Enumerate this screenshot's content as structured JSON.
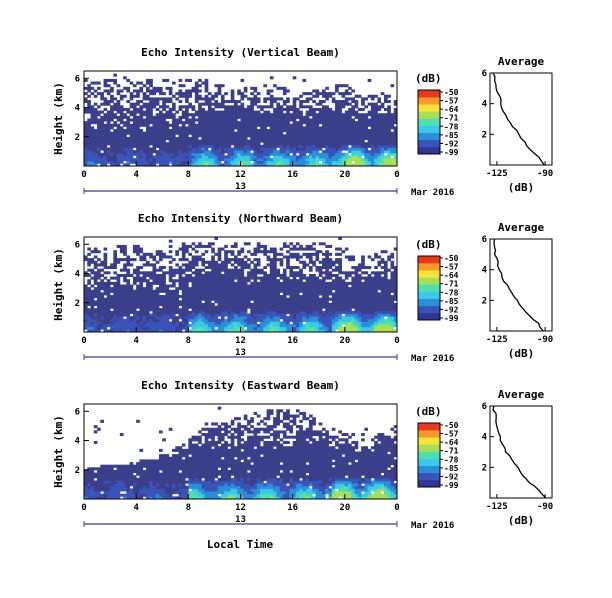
{
  "figure": {
    "xlabel": "Local Time",
    "date_label": "Mar 2016",
    "day_label": "13",
    "colorbar_title": "(dB)",
    "colorbar_ticks": [
      "-50",
      "-57",
      "-64",
      "-71",
      "-78",
      "-85",
      "-92",
      "-99"
    ],
    "colormap": [
      "#313695",
      "#3a53b8",
      "#2b8fd8",
      "#3cc8e8",
      "#4fe0b0",
      "#a6e05a",
      "#f7e33a",
      "#f79a2a",
      "#e8391e"
    ],
    "background_color": "#3b3f8a"
  },
  "chart_data": [
    {
      "type": "heatmap",
      "title": "Echo Intensity (Vertical Beam)",
      "ylabel": "Height (km)",
      "x_ticks": [
        "0",
        "4",
        "8",
        "12",
        "16",
        "20",
        "0"
      ],
      "y_ticks": [
        "6",
        "4",
        "2"
      ],
      "x_range": [
        0,
        24
      ],
      "y_range": [
        0,
        6.5
      ],
      "value_range_db": [
        -99,
        -50
      ],
      "top_height_km": [
        6,
        6,
        6,
        6,
        6,
        6,
        6,
        6,
        6,
        5.8,
        5.6,
        5.4,
        5.5,
        5.5,
        5.6,
        5.4,
        5.0,
        5.2,
        5.4,
        5.6,
        5.3,
        4.9,
        5.0,
        5.1
      ],
      "lowest_gap_km": [
        2.6,
        2.6,
        2.6,
        2.6,
        2.6,
        2.6,
        2.6,
        2.6,
        2.6,
        3.6,
        3.8,
        3.8,
        3.6,
        3.5,
        3.6,
        3.6,
        3.4,
        3.6,
        3.8,
        3.6,
        3.4,
        3.2,
        3.4,
        3.6
      ],
      "average": {
        "title": "Average",
        "xlabel": "(dB)",
        "x_ticks": [
          "-125",
          "-90"
        ],
        "y_ticks": [
          "6",
          "4",
          "2"
        ],
        "x_range": [
          -130,
          -85
        ],
        "y_range": [
          0,
          6
        ],
        "profile_db": [
          -90,
          -92,
          -95,
          -98,
          -101,
          -103,
          -105,
          -107,
          -109,
          -111,
          -113,
          -115,
          -117,
          -119,
          -120,
          -121,
          -122,
          -122,
          -123,
          -124,
          -125,
          -126,
          -127,
          -127,
          -127
        ],
        "profile_height_km": [
          0.0,
          0.25,
          0.5,
          0.75,
          1.0,
          1.25,
          1.5,
          1.75,
          2.0,
          2.25,
          2.5,
          2.75,
          3.0,
          3.25,
          3.5,
          3.75,
          4.0,
          4.25,
          4.5,
          4.75,
          5.0,
          5.25,
          5.5,
          5.75,
          6.0
        ]
      }
    },
    {
      "type": "heatmap",
      "title": "Echo Intensity (Northward Beam)",
      "ylabel": "Height (km)",
      "x_ticks": [
        "0",
        "4",
        "8",
        "12",
        "16",
        "20",
        "0"
      ],
      "y_ticks": [
        "6",
        "4",
        "2"
      ],
      "x_range": [
        0,
        24
      ],
      "y_range": [
        0,
        6.5
      ],
      "value_range_db": [
        -99,
        -50
      ],
      "top_height_km": [
        6,
        6,
        6,
        6,
        6,
        6,
        6,
        6,
        6.2,
        6.2,
        6.2,
        6.2,
        6.2,
        6.2,
        6.2,
        6.2,
        6.2,
        6.2,
        6.0,
        5.8,
        5.5,
        5.2,
        5.6,
        5.8
      ],
      "lowest_gap_km": [
        2.2,
        2.4,
        2.2,
        2.6,
        2.5,
        2.5,
        2.5,
        2.6,
        3.8,
        3.9,
        3.9,
        3.9,
        3.6,
        3.4,
        3.4,
        3.5,
        3.4,
        3.6,
        3.4,
        3.3,
        3.4,
        3.3,
        3.5,
        3.6
      ],
      "average": {
        "title": "Average",
        "xlabel": "(dB)",
        "x_ticks": [
          "-125",
          "-90"
        ],
        "y_ticks": [
          "6",
          "4",
          "2"
        ],
        "x_range": [
          -130,
          -85
        ],
        "y_range": [
          0,
          6
        ],
        "profile_db": [
          -91,
          -93,
          -95,
          -98,
          -101,
          -104,
          -106,
          -108,
          -110,
          -112,
          -114,
          -116,
          -118,
          -120,
          -121,
          -122,
          -123,
          -124,
          -124,
          -125,
          -126,
          -126,
          -127,
          -127,
          -127
        ],
        "profile_height_km": [
          0.0,
          0.25,
          0.5,
          0.75,
          1.0,
          1.25,
          1.5,
          1.75,
          2.0,
          2.25,
          2.5,
          2.75,
          3.0,
          3.25,
          3.5,
          3.75,
          4.0,
          4.25,
          4.5,
          4.75,
          5.0,
          5.25,
          5.5,
          5.75,
          6.0
        ]
      }
    },
    {
      "type": "heatmap",
      "title": "Echo Intensity (Eastward Beam)",
      "ylabel": "Height (km)",
      "x_ticks": [
        "0",
        "4",
        "8",
        "12",
        "16",
        "20",
        "0"
      ],
      "y_ticks": [
        "6",
        "4",
        "2"
      ],
      "x_range": [
        0,
        24
      ],
      "y_range": [
        0,
        6.5
      ],
      "value_range_db": [
        -99,
        -50
      ],
      "top_height_km": [
        2.2,
        2.2,
        2.4,
        2.3,
        2.6,
        2.8,
        3.2,
        3.6,
        4.5,
        5.4,
        5.2,
        5.6,
        5.8,
        6.0,
        6.1,
        6.2,
        6.0,
        5.6,
        5.0,
        4.6,
        4.2,
        4.0,
        4.8,
        5.2
      ],
      "lowest_gap_km": [
        2.2,
        2.2,
        2.4,
        2.3,
        2.6,
        2.8,
        2.6,
        2.8,
        3.4,
        3.8,
        3.6,
        3.6,
        3.4,
        3.4,
        3.4,
        3.6,
        3.4,
        3.4,
        3.6,
        3.4,
        3.2,
        3.3,
        3.4,
        3.6
      ],
      "average": {
        "title": "Average",
        "xlabel": "(dB)",
        "x_ticks": [
          "-125",
          "-90"
        ],
        "y_ticks": [
          "6",
          "4",
          "2"
        ],
        "x_range": [
          -130,
          -85
        ],
        "y_range": [
          0,
          6
        ],
        "profile_db": [
          -90,
          -92,
          -95,
          -98,
          -101,
          -104,
          -106,
          -108,
          -110,
          -112,
          -114,
          -116,
          -118,
          -119,
          -121,
          -122,
          -123,
          -124,
          -124,
          -125,
          -125,
          -126,
          -126,
          -127,
          -127
        ],
        "profile_height_km": [
          0.0,
          0.25,
          0.5,
          0.75,
          1.0,
          1.25,
          1.5,
          1.75,
          2.0,
          2.25,
          2.5,
          2.75,
          3.0,
          3.25,
          3.5,
          3.75,
          4.0,
          4.25,
          4.5,
          4.75,
          5.0,
          5.25,
          5.5,
          5.75,
          6.0
        ]
      }
    }
  ]
}
